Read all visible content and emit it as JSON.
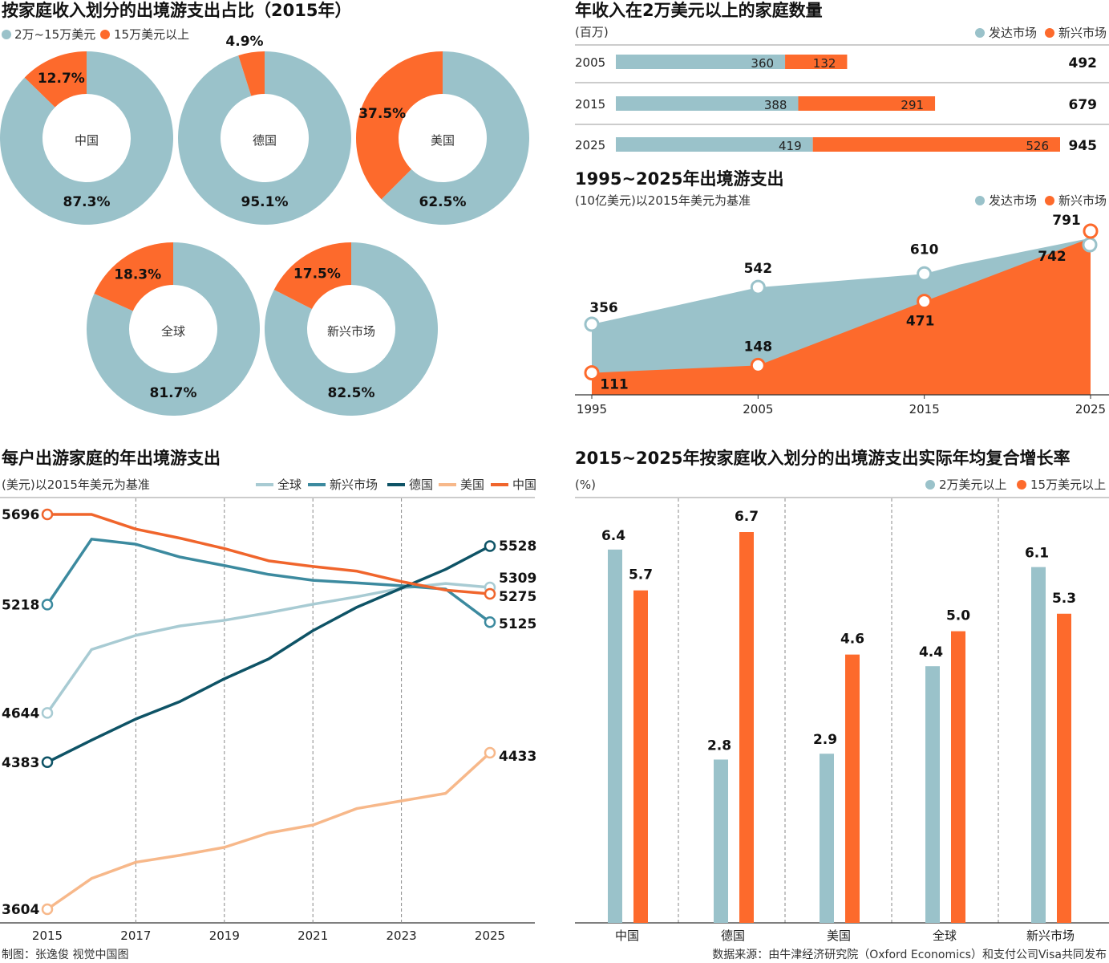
{
  "colors": {
    "blue": "#9ac2ca",
    "orange": "#fd6a2c",
    "line_global": "#a8cbd3",
    "line_emerging": "#3c8a9f",
    "line_germany": "#0e5366",
    "line_usa": "#f7b88a",
    "line_china": "#f0652c"
  },
  "donuts": {
    "title": "按家庭收入划分的出境游支出占比（2015年）",
    "legend": [
      "2万~15万美元",
      "15万美元以上"
    ],
    "chart_data": {
      "type": "pie",
      "items": [
        {
          "name": "中国",
          "big": 87.3,
          "small": 12.7,
          "big_label": "87.3%",
          "small_label": "12.7%"
        },
        {
          "name": "德国",
          "big": 95.1,
          "small": 4.9,
          "big_label": "95.1%",
          "small_label": "4.9%"
        },
        {
          "name": "美国",
          "big": 62.5,
          "small": 37.5,
          "big_label": "62.5%",
          "small_label": "37.5%"
        },
        {
          "name": "全球",
          "big": 81.7,
          "small": 18.3,
          "big_label": "81.7%",
          "small_label": "18.3%"
        },
        {
          "name": "新兴市场",
          "big": 82.5,
          "small": 17.5,
          "big_label": "82.5%",
          "small_label": "17.5%"
        }
      ]
    }
  },
  "households": {
    "title": "年收入在2万美元以上的家庭数量",
    "unit": "(百万)",
    "legend": [
      "发达市场",
      "新兴市场"
    ],
    "chart_data": {
      "type": "bar",
      "categories": [
        "2005",
        "2015",
        "2025"
      ],
      "series": [
        {
          "name": "发达市场",
          "values": [
            360,
            388,
            419
          ]
        },
        {
          "name": "新兴市场",
          "values": [
            132,
            291,
            526
          ]
        }
      ],
      "totals": [
        492,
        679,
        945
      ]
    }
  },
  "spend_area": {
    "title": "1995~2025年出境游支出",
    "unit": "(10亿美元)以2015年美元为基准",
    "legend": [
      "发达市场",
      "新兴市场"
    ],
    "chart_data": {
      "type": "area",
      "x": [
        1995,
        2005,
        2015,
        2025
      ],
      "x_labels": [
        "1995",
        "2005",
        "2015",
        "2025"
      ],
      "series": [
        {
          "name": "发达市场",
          "values": [
            356,
            542,
            610,
            742
          ]
        },
        {
          "name": "新兴市场",
          "values": [
            111,
            148,
            471,
            791
          ]
        }
      ]
    }
  },
  "household_spend": {
    "title": "每户出游家庭的年出境游支出",
    "unit": "(美元)以2015年美元为基准",
    "legend": [
      "全球",
      "新兴市场",
      "德国",
      "美国",
      "中国"
    ],
    "chart_data": {
      "type": "line",
      "x": [
        2015,
        2016,
        2017,
        2018,
        2019,
        2020,
        2021,
        2022,
        2023,
        2024,
        2025
      ],
      "x_labels": [
        "2015",
        "2017",
        "2019",
        "2021",
        "2023",
        "2025"
      ],
      "ylim": [
        3580,
        5760
      ],
      "series": [
        {
          "name": "全球",
          "values": [
            4644,
            4980,
            5055,
            5105,
            5135,
            5175,
            5220,
            5260,
            5305,
            5330,
            5309
          ]
        },
        {
          "name": "新兴市场",
          "values": [
            5218,
            5565,
            5538,
            5470,
            5425,
            5378,
            5347,
            5333,
            5318,
            5300,
            5125
          ]
        },
        {
          "name": "德国",
          "values": [
            4383,
            4500,
            4612,
            4705,
            4825,
            4930,
            5080,
            5205,
            5305,
            5405,
            5528
          ]
        },
        {
          "name": "美国",
          "values": [
            3604,
            3767,
            3853,
            3890,
            3932,
            4008,
            4050,
            4138,
            4178,
            4218,
            4433
          ]
        },
        {
          "name": "中国",
          "values": [
            5696,
            5696,
            5618,
            5570,
            5515,
            5450,
            5420,
            5395,
            5340,
            5295,
            5275
          ]
        }
      ],
      "end_labels": [
        "5309",
        "5125",
        "5528",
        "4433",
        "5275"
      ],
      "start_labels": [
        "4644",
        "5218",
        "4383",
        "3604",
        "5696"
      ]
    }
  },
  "cagr": {
    "title": "2015~2025年按家庭收入划分的出境游支出实际年均复合增长率",
    "unit": "(%)",
    "legend": [
      "2万美元以上",
      "15万美元以上"
    ],
    "chart_data": {
      "type": "bar",
      "categories": [
        "中国",
        "德国",
        "美国",
        "全球",
        "新兴市场"
      ],
      "series": [
        {
          "name": "2万美元以上",
          "values": [
            6.4,
            2.8,
            2.9,
            4.4,
            6.1
          ],
          "labels": [
            "6.4",
            "2.8",
            "2.9",
            "4.4",
            "6.1"
          ]
        },
        {
          "name": "15万美元以上",
          "values": [
            5.7,
            6.7,
            4.6,
            5.0,
            5.3
          ],
          "labels": [
            "5.7",
            "6.7",
            "4.6",
            "5.0",
            "5.3"
          ]
        }
      ],
      "ylim": [
        0,
        7.5
      ]
    }
  },
  "footer": {
    "credit": "制图：张逸俊  视觉中国图",
    "source": "数据来源：由牛津经济研究院（Oxford Economics）和支付公司Visa共同发布"
  }
}
